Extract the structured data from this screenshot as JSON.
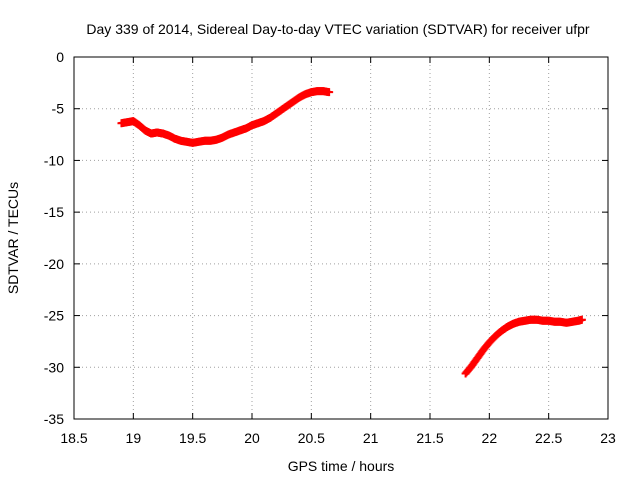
{
  "chart_data": {
    "type": "scatter",
    "title": "Day 339 of 2014, Sidereal Day-to-day VTEC variation (SDTVAR) for receiver ufpr",
    "xlabel": "GPS time / hours",
    "ylabel": "SDTVAR / TECUs",
    "xlim": [
      18.5,
      23
    ],
    "ylim": [
      -35,
      0
    ],
    "xticks": [
      18.5,
      19,
      19.5,
      20,
      20.5,
      21,
      21.5,
      22,
      22.5,
      23
    ],
    "xtick_labels": [
      "18.5",
      "19",
      "19.5",
      "20",
      "20.5",
      "21",
      "21.5",
      "22",
      "22.5",
      "23"
    ],
    "yticks": [
      0,
      -5,
      -10,
      -15,
      -20,
      -25,
      -30,
      -35
    ],
    "ytick_labels": [
      "0",
      "-5",
      "-10",
      "-15",
      "-20",
      "-25",
      "-30",
      "-35"
    ],
    "grid": true,
    "marker_color": "#ff0000",
    "series": [
      {
        "name": "segment-1",
        "points": [
          [
            18.9,
            -6.4
          ],
          [
            18.95,
            -6.3
          ],
          [
            19.0,
            -6.2
          ],
          [
            19.05,
            -6.6
          ],
          [
            19.1,
            -7.1
          ],
          [
            19.15,
            -7.4
          ],
          [
            19.2,
            -7.3
          ],
          [
            19.25,
            -7.4
          ],
          [
            19.3,
            -7.6
          ],
          [
            19.35,
            -7.9
          ],
          [
            19.4,
            -8.1
          ],
          [
            19.45,
            -8.2
          ],
          [
            19.5,
            -8.3
          ],
          [
            19.55,
            -8.2
          ],
          [
            19.6,
            -8.1
          ],
          [
            19.65,
            -8.1
          ],
          [
            19.7,
            -8.0
          ],
          [
            19.75,
            -7.8
          ],
          [
            19.8,
            -7.5
          ],
          [
            19.85,
            -7.3
          ],
          [
            19.9,
            -7.1
          ],
          [
            19.95,
            -6.9
          ],
          [
            20.0,
            -6.6
          ],
          [
            20.05,
            -6.4
          ],
          [
            20.1,
            -6.2
          ],
          [
            20.15,
            -5.9
          ],
          [
            20.2,
            -5.5
          ],
          [
            20.25,
            -5.1
          ],
          [
            20.3,
            -4.7
          ],
          [
            20.35,
            -4.3
          ],
          [
            20.4,
            -3.9
          ],
          [
            20.45,
            -3.6
          ],
          [
            20.5,
            -3.4
          ],
          [
            20.55,
            -3.3
          ],
          [
            20.6,
            -3.3
          ],
          [
            20.65,
            -3.4
          ]
        ]
      },
      {
        "name": "segment-2",
        "points": [
          [
            21.8,
            -30.6
          ],
          [
            21.85,
            -29.9
          ],
          [
            21.9,
            -29.1
          ],
          [
            21.95,
            -28.3
          ],
          [
            22.0,
            -27.6
          ],
          [
            22.05,
            -27.0
          ],
          [
            22.1,
            -26.5
          ],
          [
            22.15,
            -26.1
          ],
          [
            22.2,
            -25.8
          ],
          [
            22.25,
            -25.6
          ],
          [
            22.3,
            -25.5
          ],
          [
            22.35,
            -25.4
          ],
          [
            22.4,
            -25.4
          ],
          [
            22.45,
            -25.5
          ],
          [
            22.5,
            -25.5
          ],
          [
            22.55,
            -25.6
          ],
          [
            22.6,
            -25.6
          ],
          [
            22.65,
            -25.7
          ],
          [
            22.7,
            -25.6
          ],
          [
            22.75,
            -25.5
          ],
          [
            22.78,
            -25.4
          ]
        ]
      }
    ]
  }
}
